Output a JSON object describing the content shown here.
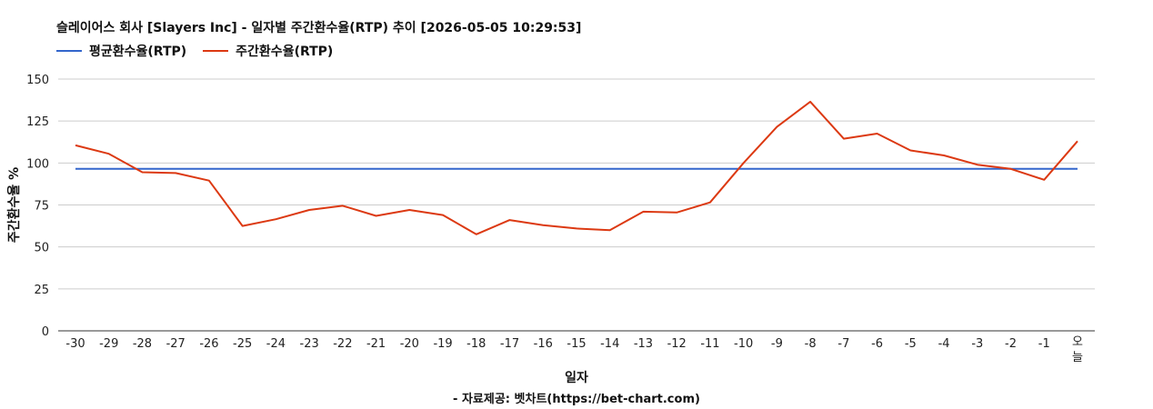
{
  "chart_data": {
    "type": "line",
    "title": "슬레이어스 회사 [Slayers Inc] - 일자별 주간환수율(RTP) 추이 [2026-05-05 10:29:53]",
    "xlabel": "일자",
    "ylabel": "주간환수율 %",
    "credit": "- 자료제공: 벳차트(https://bet-chart.com)",
    "ylim": [
      0,
      150
    ],
    "yticks": [
      0,
      25,
      50,
      75,
      100,
      125,
      150
    ],
    "grid": true,
    "legend_position": "top-left",
    "categories": [
      "-30",
      "-29",
      "-28",
      "-27",
      "-26",
      "-25",
      "-24",
      "-23",
      "-22",
      "-21",
      "-20",
      "-19",
      "-18",
      "-17",
      "-16",
      "-15",
      "-14",
      "-13",
      "-12",
      "-11",
      "-10",
      "-9",
      "-8",
      "-7",
      "-6",
      "-5",
      "-4",
      "-3",
      "-2",
      "-1",
      "오늘"
    ],
    "series": [
      {
        "name": "평균환수율(RTP)",
        "color": "#3366cc",
        "values": [
          96.5,
          96.5,
          96.5,
          96.5,
          96.5,
          96.5,
          96.5,
          96.5,
          96.5,
          96.5,
          96.5,
          96.5,
          96.5,
          96.5,
          96.5,
          96.5,
          96.5,
          96.5,
          96.5,
          96.5,
          96.5,
          96.5,
          96.5,
          96.5,
          96.5,
          96.5,
          96.5,
          96.5,
          96.5,
          96.5,
          96.5
        ]
      },
      {
        "name": "주간환수율(RTP)",
        "color": "#dc3912",
        "values": [
          110.5,
          105.5,
          94.5,
          94,
          89.5,
          62.5,
          66.5,
          72,
          74.5,
          68.5,
          72,
          69,
          57.5,
          66,
          63,
          61,
          60,
          71,
          70.5,
          76.5,
          100,
          121.5,
          136.5,
          114.5,
          117.5,
          107.5,
          104.5,
          99,
          96.5,
          90,
          113
        ]
      }
    ]
  }
}
